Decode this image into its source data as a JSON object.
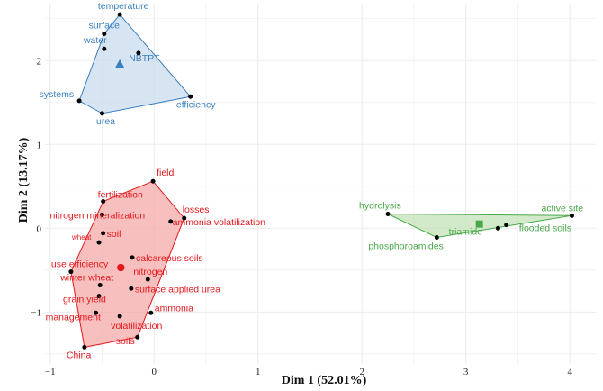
{
  "chart_data": {
    "type": "scatter",
    "title": "",
    "xlabel": "Dim 1 (52.01%)",
    "ylabel": "Dim 2 (13.17%)",
    "xlim": [
      -1.05,
      4.25
    ],
    "ylim": [
      -1.62,
      2.68
    ],
    "x_ticks": [
      -1,
      0,
      1,
      2,
      3,
      4
    ],
    "y_ticks": [
      -1,
      0,
      1,
      2
    ],
    "grid": true,
    "legend": "none",
    "clusters": [
      {
        "color": "#3a80bf",
        "fill": "#c9dbee",
        "centroid": {
          "label": "NBTPT",
          "x": -0.33,
          "y": 1.95,
          "marker": "triangle"
        },
        "hull": [
          [
            -0.33,
            2.55
          ],
          [
            0.35,
            1.57
          ],
          [
            -0.5,
            1.37
          ],
          [
            -0.72,
            1.52
          ],
          [
            -0.48,
            2.32
          ]
        ],
        "points": [
          {
            "label": "temperature",
            "x": -0.33,
            "y": 2.55
          },
          {
            "label": "surface",
            "x": -0.48,
            "y": 2.32
          },
          {
            "label": "water",
            "x": -0.48,
            "y": 2.14
          },
          {
            "label": "",
            "x": -0.15,
            "y": 2.09
          },
          {
            "label": "systems",
            "x": -0.72,
            "y": 1.52
          },
          {
            "label": "urea",
            "x": -0.5,
            "y": 1.37
          },
          {
            "label": "efficiency",
            "x": 0.35,
            "y": 1.57
          }
        ]
      },
      {
        "color": "#e4181c",
        "fill": "#f5a9aa",
        "centroid": {
          "label": "",
          "x": -0.32,
          "y": -0.47,
          "marker": "circle"
        },
        "hull": [
          [
            -0.01,
            0.56
          ],
          [
            0.29,
            0.12
          ],
          [
            -0.16,
            -1.3
          ],
          [
            -0.67,
            -1.42
          ],
          [
            -0.8,
            -0.52
          ],
          [
            -0.49,
            0.32
          ]
        ],
        "points": [
          {
            "label": "field",
            "x": -0.01,
            "y": 0.56
          },
          {
            "label": "fertilization",
            "x": -0.49,
            "y": 0.32
          },
          {
            "label": "losses",
            "x": 0.29,
            "y": 0.12
          },
          {
            "label": "nitrogen mineralization",
            "x": -0.5,
            "y": 0.16
          },
          {
            "label": "ammonia volatilization",
            "x": 0.16,
            "y": 0.08
          },
          {
            "label": "soil",
            "x": -0.49,
            "y": -0.06
          },
          {
            "label": "wheat",
            "x": -0.53,
            "y": -0.17
          },
          {
            "label": "calcareous soils",
            "x": -0.21,
            "y": -0.35
          },
          {
            "label": "use efficiency",
            "x": -0.8,
            "y": -0.52
          },
          {
            "label": "nitrogen",
            "x": -0.06,
            "y": -0.61
          },
          {
            "label": "winter wheat",
            "x": -0.52,
            "y": -0.68
          },
          {
            "label": "surface applied urea",
            "x": -0.22,
            "y": -0.72
          },
          {
            "label": "grain yield",
            "x": -0.53,
            "y": -0.81
          },
          {
            "label": "ammonia",
            "x": -0.03,
            "y": -1.01
          },
          {
            "label": "management",
            "x": -0.56,
            "y": -1.01
          },
          {
            "label": "volatilization",
            "x": -0.33,
            "y": -1.05
          },
          {
            "label": "soils",
            "x": -0.16,
            "y": -1.3
          },
          {
            "label": "China",
            "x": -0.67,
            "y": -1.42
          }
        ]
      },
      {
        "color": "#4aa84a",
        "fill": "#c3e3b8",
        "centroid": {
          "label": "triamide",
          "x": 3.13,
          "y": 0.05,
          "marker": "square"
        },
        "hull": [
          [
            2.25,
            0.17
          ],
          [
            4.02,
            0.15
          ],
          [
            2.72,
            -0.11
          ]
        ],
        "points": [
          {
            "label": "hydrolysis",
            "x": 2.25,
            "y": 0.17
          },
          {
            "label": "phosphoroamides",
            "x": 2.72,
            "y": -0.11
          },
          {
            "label": "",
            "x": 3.31,
            "y": 0.0
          },
          {
            "label": "flooded soils",
            "x": 3.39,
            "y": 0.04
          },
          {
            "label": "active site",
            "x": 4.02,
            "y": 0.15
          }
        ]
      }
    ]
  }
}
